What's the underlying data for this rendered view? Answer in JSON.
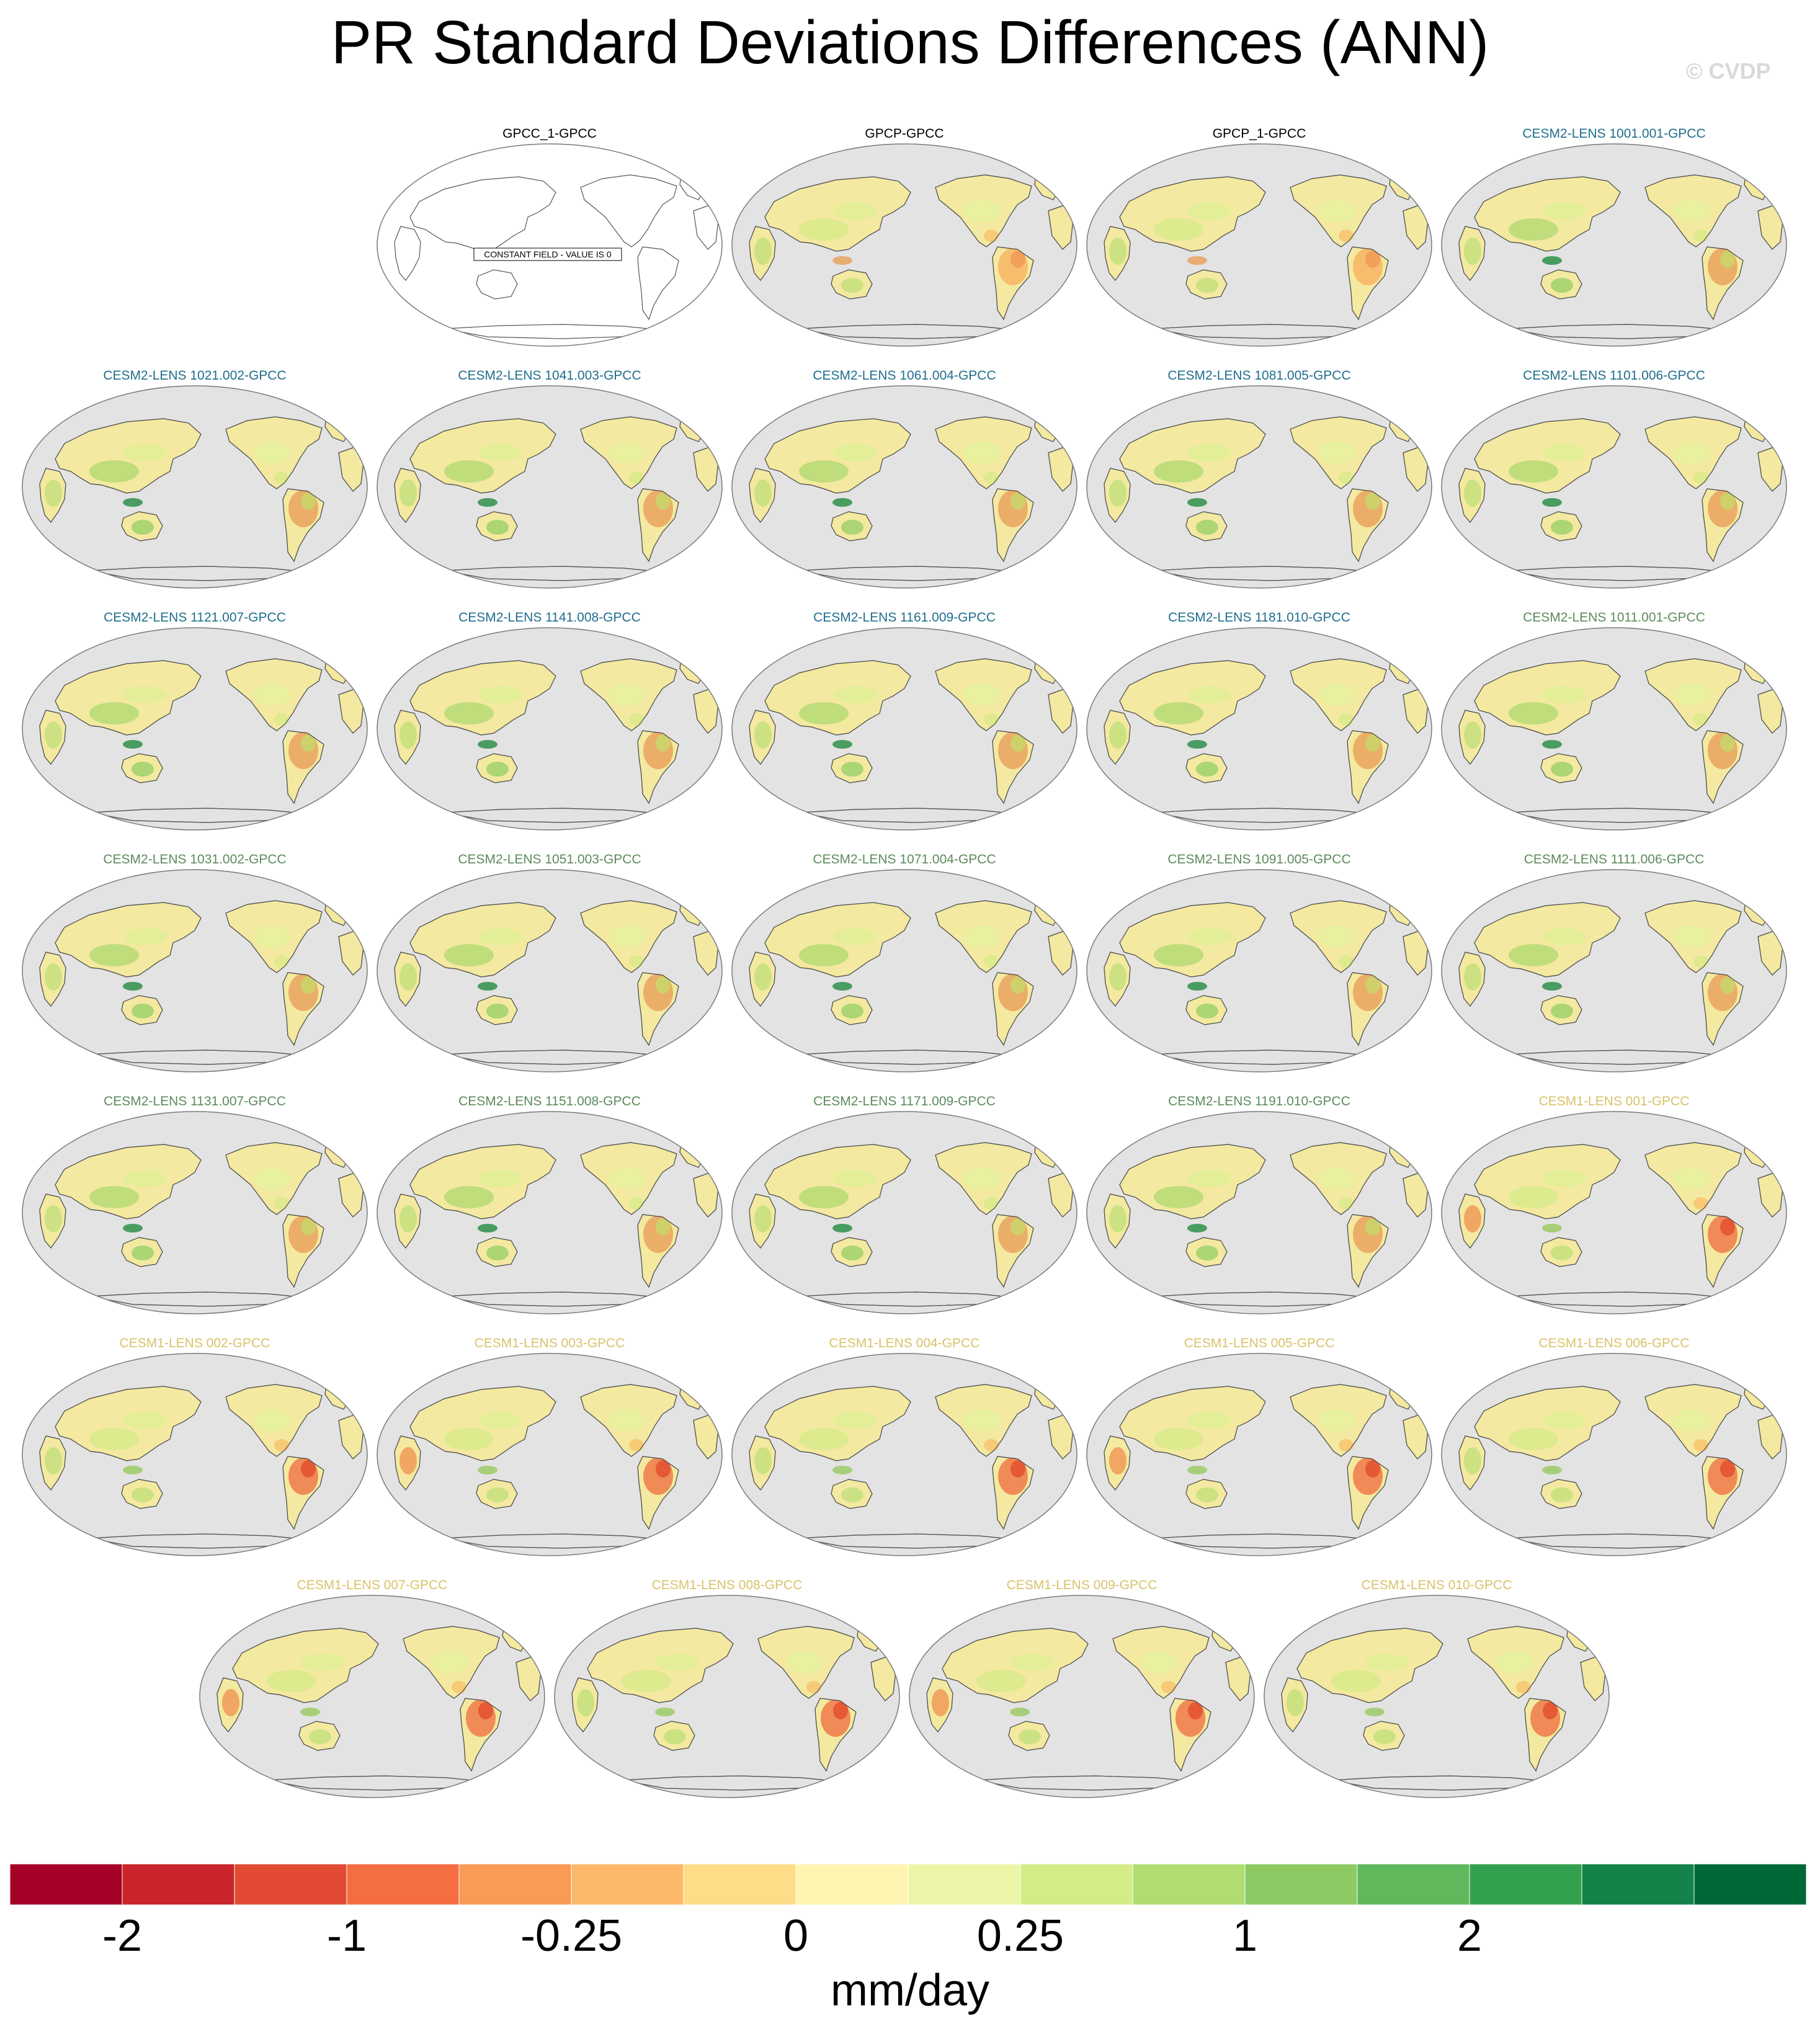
{
  "title": "PR Standard Deviations Differences (ANN)",
  "watermark": "© CVDP",
  "colors": {
    "cesm2_a": "#1f6e8c",
    "cesm2_b": "#5c8a5c",
    "cesm1": "#d9c26a",
    "obs": "#000000",
    "ocean": "#e3e3e3",
    "coast": "#555555"
  },
  "constant_field_note": "CONSTANT FIELD - VALUE IS 0",
  "panels": [
    {
      "label": "GPCC_1-GPCC",
      "group": "obs",
      "constant": true
    },
    {
      "label": "GPCP-GPCC",
      "group": "obs"
    },
    {
      "label": "GPCP_1-GPCC",
      "group": "obs"
    },
    {
      "label": "CESM2-LENS 1001.001-GPCC",
      "group": "cesm2_a"
    },
    {
      "label": "CESM2-LENS 1021.002-GPCC",
      "group": "cesm2_a"
    },
    {
      "label": "CESM2-LENS 1041.003-GPCC",
      "group": "cesm2_a"
    },
    {
      "label": "CESM2-LENS 1061.004-GPCC",
      "group": "cesm2_a"
    },
    {
      "label": "CESM2-LENS 1081.005-GPCC",
      "group": "cesm2_a"
    },
    {
      "label": "CESM2-LENS 1101.006-GPCC",
      "group": "cesm2_a"
    },
    {
      "label": "CESM2-LENS 1121.007-GPCC",
      "group": "cesm2_a"
    },
    {
      "label": "CESM2-LENS 1141.008-GPCC",
      "group": "cesm2_a"
    },
    {
      "label": "CESM2-LENS 1161.009-GPCC",
      "group": "cesm2_a"
    },
    {
      "label": "CESM2-LENS 1181.010-GPCC",
      "group": "cesm2_a"
    },
    {
      "label": "CESM2-LENS 1011.001-GPCC",
      "group": "cesm2_b"
    },
    {
      "label": "CESM2-LENS 1031.002-GPCC",
      "group": "cesm2_b"
    },
    {
      "label": "CESM2-LENS 1051.003-GPCC",
      "group": "cesm2_b"
    },
    {
      "label": "CESM2-LENS 1071.004-GPCC",
      "group": "cesm2_b"
    },
    {
      "label": "CESM2-LENS 1091.005-GPCC",
      "group": "cesm2_b"
    },
    {
      "label": "CESM2-LENS 1111.006-GPCC",
      "group": "cesm2_b"
    },
    {
      "label": "CESM2-LENS 1131.007-GPCC",
      "group": "cesm2_b"
    },
    {
      "label": "CESM2-LENS 1151.008-GPCC",
      "group": "cesm2_b"
    },
    {
      "label": "CESM2-LENS 1171.009-GPCC",
      "group": "cesm2_b"
    },
    {
      "label": "CESM2-LENS 1191.010-GPCC",
      "group": "cesm2_b"
    },
    {
      "label": "CESM1-LENS 001-GPCC",
      "group": "cesm1"
    },
    {
      "label": "CESM1-LENS 002-GPCC",
      "group": "cesm1"
    },
    {
      "label": "CESM1-LENS 003-GPCC",
      "group": "cesm1"
    },
    {
      "label": "CESM1-LENS 004-GPCC",
      "group": "cesm1"
    },
    {
      "label": "CESM1-LENS 005-GPCC",
      "group": "cesm1"
    },
    {
      "label": "CESM1-LENS 006-GPCC",
      "group": "cesm1"
    },
    {
      "label": "CESM1-LENS 007-GPCC",
      "group": "cesm1"
    },
    {
      "label": "CESM1-LENS 008-GPCC",
      "group": "cesm1"
    },
    {
      "label": "CESM1-LENS 009-GPCC",
      "group": "cesm1"
    },
    {
      "label": "CESM1-LENS 010-GPCC",
      "group": "cesm1"
    }
  ],
  "colorbar": {
    "colors": [
      "#a50026",
      "#c9252b",
      "#e34a33",
      "#f46d43",
      "#f99a56",
      "#fdb86a",
      "#fedc88",
      "#fff5b0",
      "#ecf5a8",
      "#d4ec85",
      "#b0dc72",
      "#8ccb64",
      "#5fb85c",
      "#33a04e",
      "#13834a",
      "#006837"
    ],
    "labels": [
      "-2",
      "-1",
      "-0.25",
      "0",
      "0.25",
      "1",
      "2"
    ],
    "label_boundaries": [
      2,
      4,
      6,
      8,
      10,
      12,
      14
    ],
    "units": "mm/day"
  }
}
